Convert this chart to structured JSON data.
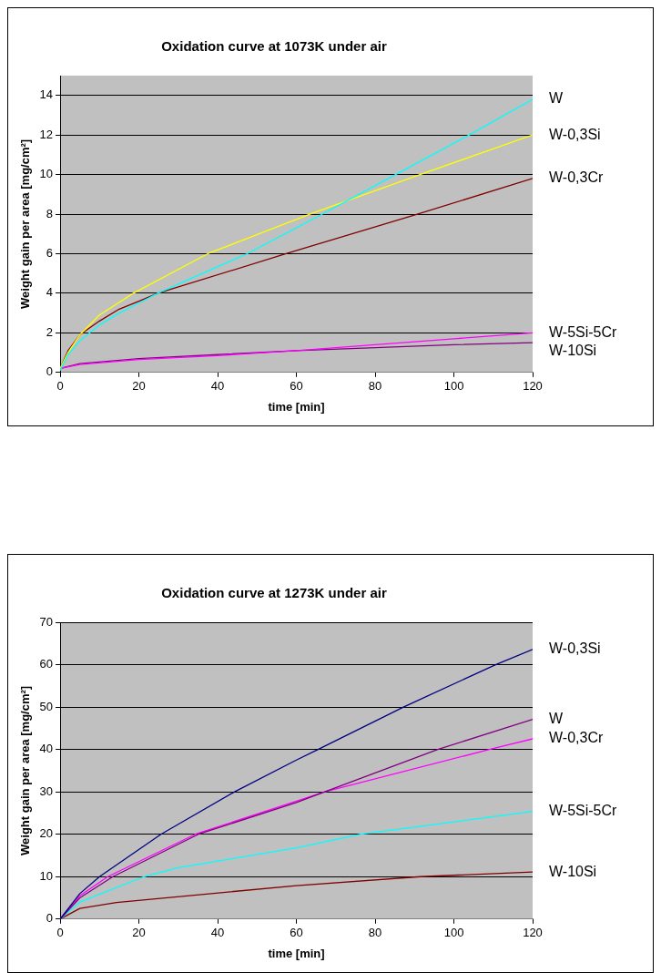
{
  "chart_data": [
    {
      "type": "line",
      "title": "Oxidation curve at 1073K under air",
      "xlabel": "time [min]",
      "ylabel": "Weight gain per area [mg/cm²]",
      "xlim": [
        0,
        120
      ],
      "xticks": [
        0,
        20,
        40,
        60,
        80,
        100,
        120
      ],
      "ylim": [
        0,
        15
      ],
      "yticks": [
        0,
        2,
        4,
        6,
        8,
        10,
        12,
        14
      ],
      "grid": "y",
      "marker": "none",
      "line_style": "solid",
      "series": [
        {
          "name": "W",
          "color": "#00ffff",
          "x": [
            0,
            2,
            5,
            10,
            15,
            20,
            24.8,
            47.5,
            66.6,
            85.2,
            103.9,
            120
          ],
          "values": [
            0.1,
            0.9,
            1.6,
            2.4,
            3.0,
            3.5,
            4,
            6,
            8,
            10,
            12,
            13.8
          ]
        },
        {
          "name": "W-0,3Si",
          "color": "#ffff00",
          "x": [
            0,
            2,
            5,
            10,
            18.6,
            37.5,
            63.4,
            91.4,
            120
          ],
          "values": [
            0.2,
            1.0,
            1.9,
            2.9,
            4,
            6,
            8,
            10,
            12
          ]
        },
        {
          "name": "W-0,3Cr",
          "color": "#800000",
          "x": [
            0,
            2,
            5,
            10,
            15,
            20,
            24.8,
            57.4,
            90.7,
            120
          ],
          "values": [
            0.2,
            1.1,
            1.9,
            2.6,
            3.2,
            3.6,
            4,
            6,
            8,
            9.8
          ]
        },
        {
          "name": "W-5Si-5Cr",
          "color": "#ff00ff",
          "x": [
            0,
            5,
            20,
            40,
            60,
            80,
            100,
            120
          ],
          "values": [
            0.2,
            0.4,
            0.65,
            0.85,
            1.1,
            1.4,
            1.7,
            2.0
          ]
        },
        {
          "name": "W-10Si",
          "color": "#800080",
          "x": [
            0,
            5,
            20,
            40,
            60,
            80,
            100,
            120
          ],
          "values": [
            0.2,
            0.45,
            0.7,
            0.9,
            1.1,
            1.25,
            1.4,
            1.5
          ]
        }
      ]
    },
    {
      "type": "line",
      "title": "Oxidation curve at 1273K under air",
      "xlabel": "time [min]",
      "ylabel": "Weight gain per area [mg/cm²]",
      "xlim": [
        0,
        120
      ],
      "xticks": [
        0,
        20,
        40,
        60,
        80,
        100,
        120
      ],
      "ylim": [
        0,
        70
      ],
      "yticks": [
        0,
        10,
        20,
        30,
        40,
        50,
        60,
        70
      ],
      "grid": "y",
      "marker": "none",
      "line_style": "solid",
      "series": [
        {
          "name": "W-0,3Si",
          "color": "#000080",
          "x": [
            0,
            5,
            10,
            25.6,
            44.3,
            60,
            65.5,
            87.2,
            110.6,
            120
          ],
          "values": [
            0,
            6,
            10,
            20,
            30,
            37.5,
            40,
            50,
            60,
            63.6
          ]
        },
        {
          "name": "W",
          "color": "#800080",
          "x": [
            0,
            5,
            13.4,
            35.1,
            60,
            67.2,
            95.9,
            120
          ],
          "values": [
            0,
            5,
            10,
            20,
            27.5,
            30,
            40,
            47.1
          ]
        },
        {
          "name": "W-0,3Cr",
          "color": "#ff00ff",
          "x": [
            0,
            5,
            12.1,
            34.3,
            60,
            67.2,
            109,
            120
          ],
          "values": [
            0,
            5.5,
            10,
            20,
            27.8,
            30,
            40,
            42.5
          ]
        },
        {
          "name": "W-5Si-5Cr",
          "color": "#00ffff",
          "x": [
            0,
            5,
            21.3,
            30,
            60,
            76.4,
            120
          ],
          "values": [
            0,
            4,
            10,
            12.1,
            16.8,
            20,
            25.4
          ]
        },
        {
          "name": "W-10Si",
          "color": "#800000",
          "x": [
            0,
            5,
            14.3,
            60,
            91.5,
            120
          ],
          "values": [
            0,
            2.5,
            3.9,
            7.9,
            10,
            11.1
          ]
        }
      ]
    }
  ]
}
